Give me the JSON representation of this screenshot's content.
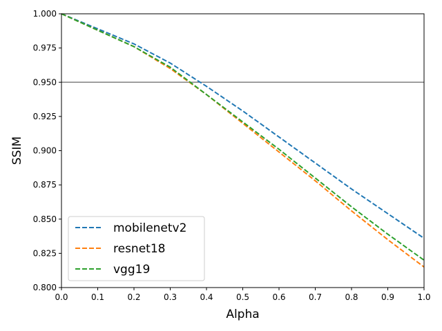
{
  "chart_data": {
    "type": "line",
    "title": "",
    "xlabel": "Alpha",
    "ylabel": "SSIM",
    "xlim": [
      0.0,
      1.0
    ],
    "ylim": [
      0.8,
      1.0
    ],
    "xticks": [
      "0.0",
      "0.1",
      "0.2",
      "0.3",
      "0.4",
      "0.5",
      "0.6",
      "0.7",
      "0.8",
      "0.9",
      "1.0"
    ],
    "yticks": [
      "0.800",
      "0.825",
      "0.850",
      "0.875",
      "0.900",
      "0.925",
      "0.950",
      "0.975",
      "1.000"
    ],
    "grid": false,
    "legend_position": "lower-left",
    "reference_line": {
      "y": 0.95,
      "color": "#808080"
    },
    "x": [
      0.0,
      0.1,
      0.2,
      0.3,
      0.4,
      0.5,
      0.6,
      0.7,
      0.8,
      0.9,
      1.0
    ],
    "series": [
      {
        "name": "mobilenetv2",
        "color": "#1f77b4",
        "values": [
          1.0,
          0.989,
          0.978,
          0.964,
          0.947,
          0.929,
          0.91,
          0.891,
          0.872,
          0.854,
          0.836
        ]
      },
      {
        "name": "resnet18",
        "color": "#ff7f0e",
        "values": [
          1.0,
          0.988,
          0.976,
          0.96,
          0.941,
          0.92,
          0.899,
          0.878,
          0.856,
          0.835,
          0.815
        ]
      },
      {
        "name": "vgg19",
        "color": "#2ca02c",
        "values": [
          1.0,
          0.988,
          0.976,
          0.961,
          0.941,
          0.921,
          0.901,
          0.88,
          0.859,
          0.839,
          0.82
        ]
      }
    ]
  }
}
